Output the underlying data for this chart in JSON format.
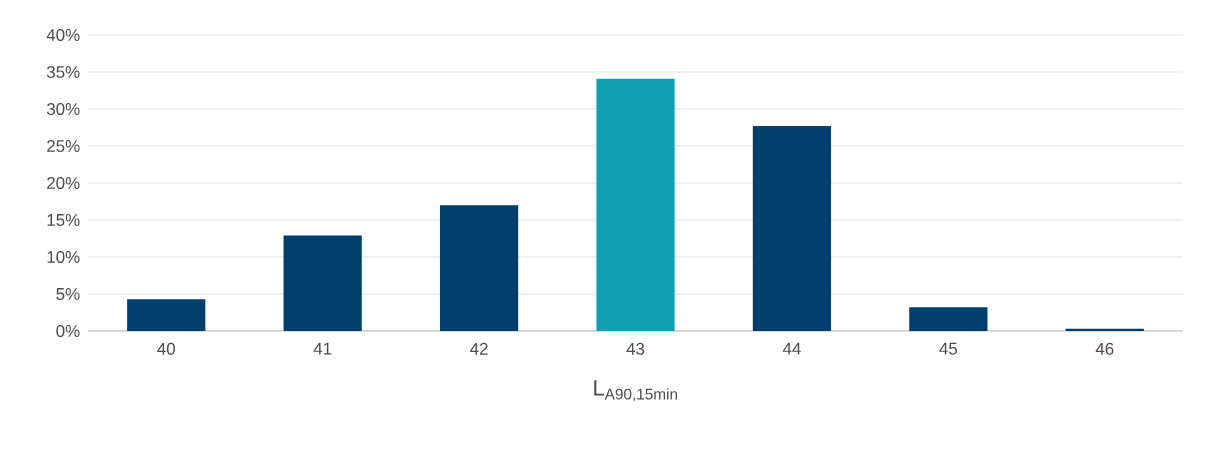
{
  "chart_data": {
    "type": "bar",
    "xlabel": "L$_{A90,15min}$",
    "categories": [
      "40",
      "41",
      "42",
      "43",
      "44",
      "45",
      "46"
    ],
    "values": [
      4.3,
      12.9,
      17.0,
      34.1,
      27.7,
      3.2,
      0.3
    ],
    "colors": [
      "#003f6b",
      "#003f6b",
      "#003f6b",
      "#0fa0b3",
      "#003f6b",
      "#003f6b",
      "#003f6b"
    ],
    "ylim": [
      0,
      40
    ],
    "yticks": [
      {
        "value": 0,
        "label": "0%"
      },
      {
        "value": 5,
        "label": "5%"
      },
      {
        "value": 10,
        "label": "10%"
      },
      {
        "value": 15,
        "label": "15%"
      },
      {
        "value": 20,
        "label": "20%"
      },
      {
        "value": 25,
        "label": "25%"
      },
      {
        "value": 30,
        "label": "30%"
      },
      {
        "value": 35,
        "label": "35%"
      },
      {
        "value": 40,
        "label": "40%"
      }
    ],
    "grid": "y"
  }
}
